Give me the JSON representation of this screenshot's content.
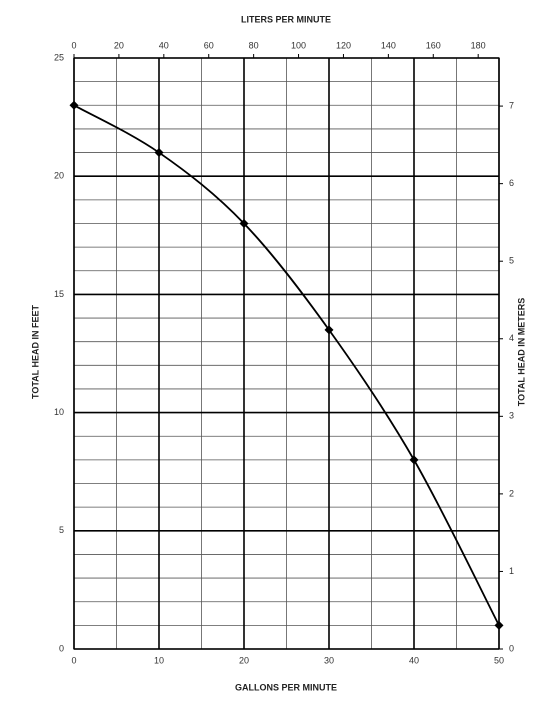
{
  "chart_data": {
    "type": "line",
    "x_label": "GALLONS PER MINUTE",
    "x2_label": "LITERS PER MINUTE",
    "y_label": "TOTAL HEAD IN FEET",
    "y2_label": "TOTAL HEAD IN METERS",
    "x": [
      0,
      10,
      20,
      30,
      40,
      50
    ],
    "series": [
      {
        "color": "#000000",
        "values": [
          23,
          21,
          18,
          13.5,
          8,
          1
        ]
      }
    ],
    "xlim": [
      0,
      50
    ],
    "xticks": [
      0,
      10,
      20,
      30,
      40,
      50
    ],
    "x2lim": [
      0,
      189.27
    ],
    "x2ticks": [
      0,
      20,
      40,
      60,
      80,
      100,
      120,
      140,
      160,
      180
    ],
    "ylim": [
      0,
      25
    ],
    "yticks": [
      0,
      5,
      10,
      15,
      20,
      25
    ],
    "y2lim": [
      0,
      7.62
    ],
    "y2ticks": [
      0,
      1,
      2,
      3,
      4,
      5,
      6,
      7
    ],
    "grid": true
  }
}
